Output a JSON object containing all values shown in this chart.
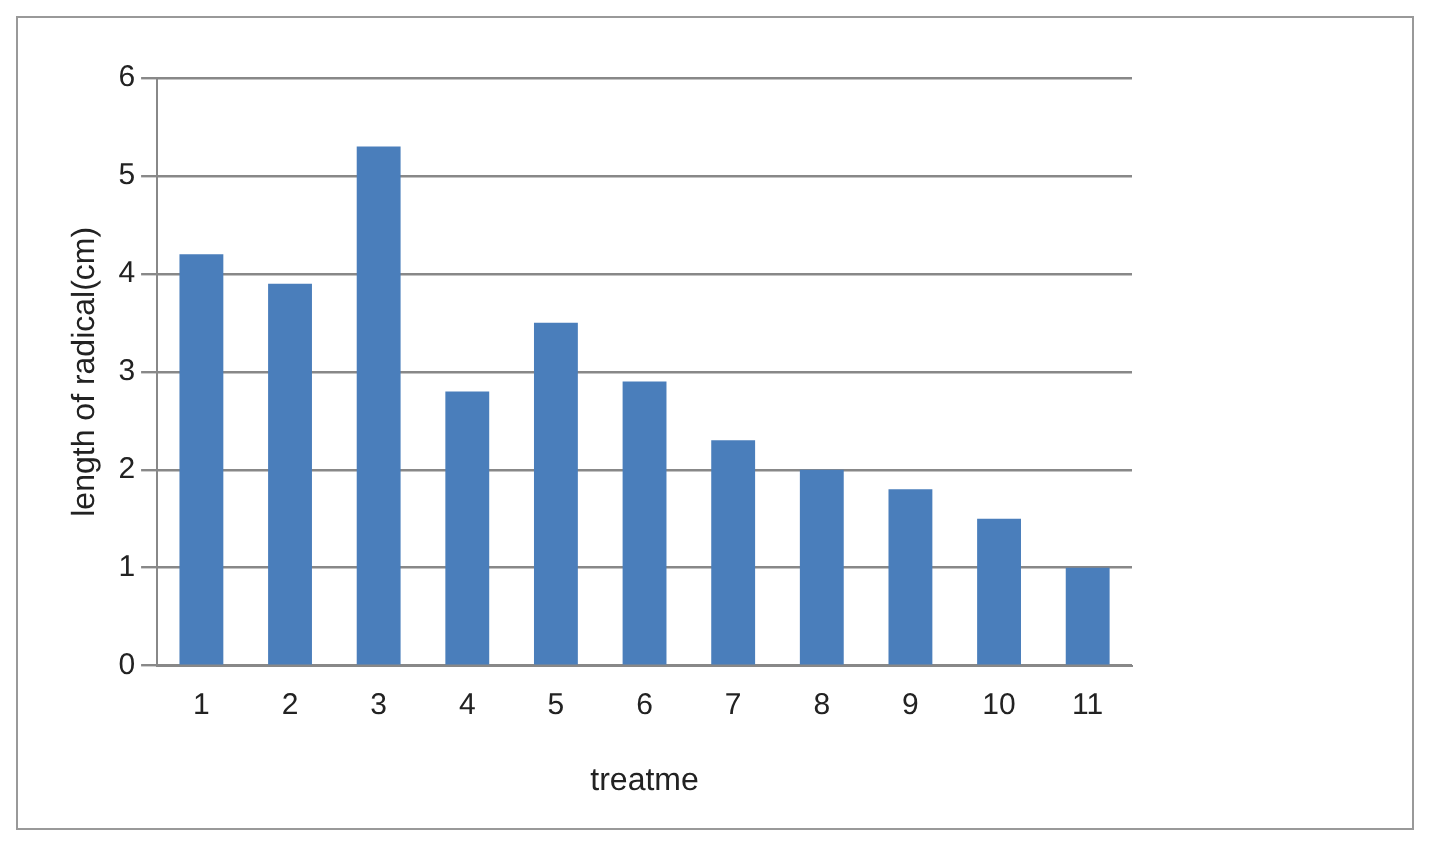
{
  "chart_data": {
    "type": "bar",
    "xlabel": "treatme",
    "ylabel": "length of radical(cm)",
    "categories": [
      "1",
      "2",
      "3",
      "4",
      "5",
      "6",
      "7",
      "8",
      "9",
      "10",
      "11"
    ],
    "values": [
      4.2,
      3.9,
      5.3,
      2.8,
      3.5,
      2.9,
      2.3,
      2.0,
      1.8,
      1.5,
      1.0
    ],
    "color": "#4a7ebb",
    "ylim": [
      0,
      6
    ],
    "yticks": [
      0,
      1,
      2,
      3,
      4,
      5,
      6
    ],
    "grid": "y"
  }
}
